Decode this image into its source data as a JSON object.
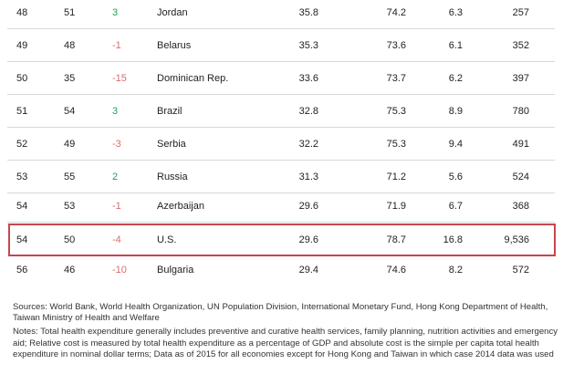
{
  "rows": [
    {
      "rank": "48",
      "prev": "51",
      "change": "3",
      "country": "Jordan",
      "relative_cost": "35.8",
      "life_expectancy": "74.2",
      "absolute_cost": "6.3",
      "per_capita": "257"
    },
    {
      "rank": "49",
      "prev": "48",
      "change": "-1",
      "country": "Belarus",
      "relative_cost": "35.3",
      "life_expectancy": "73.6",
      "absolute_cost": "6.1",
      "per_capita": "352"
    },
    {
      "rank": "50",
      "prev": "35",
      "change": "-15",
      "country": "Dominican Rep.",
      "relative_cost": "33.6",
      "life_expectancy": "73.7",
      "absolute_cost": "6.2",
      "per_capita": "397"
    },
    {
      "rank": "51",
      "prev": "54",
      "change": "3",
      "country": "Brazil",
      "relative_cost": "32.8",
      "life_expectancy": "75.3",
      "absolute_cost": "8.9",
      "per_capita": "780"
    },
    {
      "rank": "52",
      "prev": "49",
      "change": "-3",
      "country": "Serbia",
      "relative_cost": "32.2",
      "life_expectancy": "75.3",
      "absolute_cost": "9.4",
      "per_capita": "491"
    },
    {
      "rank": "53",
      "prev": "55",
      "change": "2",
      "country": "Russia",
      "relative_cost": "31.3",
      "life_expectancy": "71.2",
      "absolute_cost": "5.6",
      "per_capita": "524"
    },
    {
      "rank": "54",
      "prev": "53",
      "change": "-1",
      "country": "Azerbaijan",
      "relative_cost": "29.6",
      "life_expectancy": "71.9",
      "absolute_cost": "6.7",
      "per_capita": "368"
    },
    {
      "rank": "54",
      "prev": "50",
      "change": "-4",
      "country": "U.S.",
      "relative_cost": "29.6",
      "life_expectancy": "78.7",
      "absolute_cost": "16.8",
      "per_capita": "9,536"
    },
    {
      "rank": "56",
      "prev": "46",
      "change": "-10",
      "country": "Bulgaria",
      "relative_cost": "29.4",
      "life_expectancy": "74.6",
      "absolute_cost": "8.2",
      "per_capita": "572"
    }
  ],
  "highlighted_country": "U.S.",
  "colors": {
    "positive": "#22a05a",
    "negative": "#e06a6a",
    "highlight_border": "#c8454c"
  },
  "notes": {
    "sources": "Sources: World Bank, World Health Organization, UN Population Division, International Monetary Fund, Hong Kong Department of Health, Taiwan Ministry of Health and Welfare",
    "notes": "Notes: Total health expenditure generally includes preventive and curative health services, family planning, nutrition activities and emergency aid; Relative cost is measured by total health expenditure as a percentage of GDP and absolute cost is the simple per capita total health expenditure in nominal dollar terms; Data as of 2015 for all economies except for Hong Kong and Taiwan in which case 2014 data was used"
  }
}
